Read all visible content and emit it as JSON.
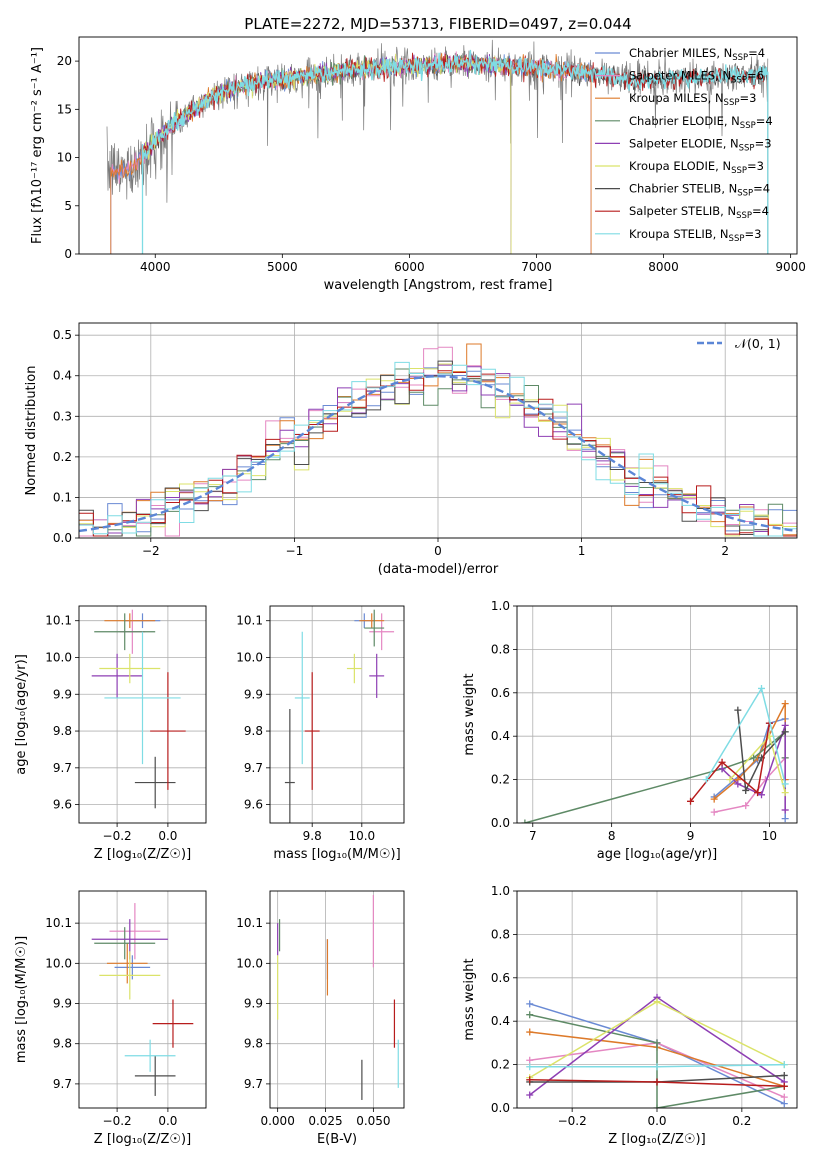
{
  "figure_title": "PLATE=2272, MJD=53713, FIBERID=0497, z=0.044",
  "series_names": [
    "Chabrier MILES",
    "Salpeter MILES",
    "Kroupa MILES",
    "Chabrier ELODIE",
    "Salpeter ELODIE",
    "Kroupa ELODIE",
    "Chabrier STELIB",
    "Salpeter STELIB",
    "Kroupa STELIB"
  ],
  "colors": [
    "#6a8ad4",
    "#e487c2",
    "#dd7a2a",
    "#5e8a66",
    "#8e3fb4",
    "#dbe36a",
    "#4d4d4d",
    "#b71c1c",
    "#7fdce4"
  ],
  "chart_data": [
    {
      "type": "line",
      "title": "PLATE=2272, MJD=53713, FIBERID=0497, z=0.044",
      "xlabel": "wavelength [Angstrom, rest frame]",
      "ylabel": "Flux [fλ10⁻¹⁷ erg cm⁻² s⁻¹ A⁻¹]",
      "xlim": [
        3400,
        9050
      ],
      "ylim": [
        0,
        22.5
      ],
      "xticks": [
        4000,
        5000,
        6000,
        7000,
        8000,
        9000
      ],
      "yticks": [
        0,
        5,
        10,
        15,
        20
      ],
      "grid": false,
      "legend_placement": "right",
      "legend": [
        {
          "name": "Chabrier MILES",
          "nssp": "4"
        },
        {
          "name": "Salpeter MILES",
          "nssp": "6"
        },
        {
          "name": "Kroupa MILES",
          "nssp": "3"
        },
        {
          "name": "Chabrier ELODIE",
          "nssp": "4"
        },
        {
          "name": "Salpeter ELODIE",
          "nssp": "3"
        },
        {
          "name": "Kroupa ELODIE",
          "nssp": "3"
        },
        {
          "name": "Chabrier STELIB",
          "nssp": "4"
        },
        {
          "name": "Salpeter STELIB",
          "nssp": "4"
        },
        {
          "name": "Kroupa STELIB",
          "nssp": "3"
        }
      ],
      "continuum": [
        [
          3650,
          8.5
        ],
        [
          3800,
          8.8
        ],
        [
          3950,
          11.0
        ],
        [
          4100,
          13.0
        ],
        [
          4300,
          15.0
        ],
        [
          4500,
          16.8
        ],
        [
          4800,
          17.8
        ],
        [
          5200,
          18.5
        ],
        [
          5600,
          19.2
        ],
        [
          6000,
          19.5
        ],
        [
          6500,
          19.8
        ],
        [
          7000,
          19.3
        ],
        [
          7400,
          18.8
        ],
        [
          7800,
          18.0
        ],
        [
          8300,
          18.3
        ],
        [
          8800,
          18.6
        ]
      ],
      "data_range": [
        3620,
        8820
      ],
      "model_ranges": {
        "MILES": [
          3650,
          7430
        ],
        "ELODIE": [
          3900,
          6800
        ],
        "STELIB": [
          3900,
          8820
        ]
      }
    },
    {
      "type": "bar",
      "subtype": "step-histogram",
      "xlabel": "(data-model)/error",
      "ylabel": "Normed distribution",
      "xlim": [
        -2.5,
        2.5
      ],
      "ylim": [
        0,
        0.53
      ],
      "xticks": [
        -2,
        -1,
        0,
        1,
        2
      ],
      "xtick_labels": [
        "−2",
        "−1",
        "0",
        "1",
        "2"
      ],
      "yticks": [
        0.0,
        0.1,
        0.2,
        0.3,
        0.4,
        0.5
      ],
      "grid": true,
      "legend_placement": "top-right",
      "reference_label": "𝒩(0, 1)",
      "bin_width": 0.1
    },
    {
      "type": "scatter",
      "subtype": "errorbar",
      "xlabel": "Z [log₁₀(Z/Z☉)]",
      "ylabel": "age  [log₁₀(age/yr)]",
      "xlim": [
        -0.35,
        0.15
      ],
      "ylim": [
        9.55,
        10.14
      ],
      "xticks": [
        -0.2,
        0.0
      ],
      "xtick_labels": [
        "−0.2",
        "0.0"
      ],
      "yticks": [
        9.6,
        9.7,
        9.8,
        9.9,
        10.0,
        10.1
      ],
      "grid": true,
      "points": [
        {
          "x": -0.1,
          "xerr": 0.07,
          "y": 10.1,
          "yerr": 0.02
        },
        {
          "x": -0.14,
          "xerr": 0.05,
          "y": 10.07,
          "yerr": 0.06
        },
        {
          "x": -0.15,
          "xerr": 0.1,
          "y": 10.1,
          "yerr": 0.02
        },
        {
          "x": -0.17,
          "xerr": 0.12,
          "y": 10.07,
          "yerr": 0.05
        },
        {
          "x": -0.2,
          "xerr": 0.1,
          "y": 9.95,
          "yerr": 0.06
        },
        {
          "x": -0.15,
          "xerr": 0.12,
          "y": 9.97,
          "yerr": 0.04
        },
        {
          "x": -0.05,
          "xerr": 0.08,
          "y": 9.66,
          "yerr": 0.07
        },
        {
          "x": 0.0,
          "xerr": 0.07,
          "y": 9.8,
          "yerr": 0.16
        },
        {
          "x": -0.1,
          "xerr": 0.15,
          "y": 9.89,
          "yerr": 0.18
        }
      ]
    },
    {
      "type": "scatter",
      "subtype": "errorbar",
      "xlabel": "mass [log₁₀(M/M☉)]",
      "ylabel": "",
      "xlim": [
        9.63,
        10.17
      ],
      "ylim": [
        9.55,
        10.14
      ],
      "xticks": [
        9.8,
        10.0
      ],
      "yticks": [
        9.6,
        9.7,
        9.8,
        9.9,
        10.0,
        10.1
      ],
      "grid": true,
      "points": [
        {
          "x": 10.01,
          "xerr": 0.04,
          "y": 10.1,
          "yerr": 0.02
        },
        {
          "x": 10.08,
          "xerr": 0.05,
          "y": 10.07,
          "yerr": 0.05
        },
        {
          "x": 10.04,
          "xerr": 0.05,
          "y": 10.1,
          "yerr": 0.02
        },
        {
          "x": 10.05,
          "xerr": 0.04,
          "y": 10.08,
          "yerr": 0.05
        },
        {
          "x": 10.06,
          "xerr": 0.03,
          "y": 9.95,
          "yerr": 0.06
        },
        {
          "x": 9.97,
          "xerr": 0.03,
          "y": 9.97,
          "yerr": 0.04
        },
        {
          "x": 9.71,
          "xerr": 0.02,
          "y": 9.66,
          "yerr": 0.2
        },
        {
          "x": 9.8,
          "xerr": 0.03,
          "y": 9.8,
          "yerr": 0.16
        },
        {
          "x": 9.76,
          "xerr": 0.03,
          "y": 9.89,
          "yerr": 0.18
        }
      ]
    },
    {
      "type": "line",
      "xlabel": "age  [log₁₀(age/yr)]",
      "ylabel": "mass weight",
      "xlim": [
        6.8,
        10.35
      ],
      "ylim": [
        0,
        1.0
      ],
      "xticks": [
        7,
        8,
        9,
        10
      ],
      "yticks": [
        0.0,
        0.2,
        0.4,
        0.6,
        0.8,
        1.0
      ],
      "grid": true,
      "series": [
        {
          "points": [
            [
              9.3,
              0.12
            ],
            [
              9.85,
              0.29
            ],
            [
              10.0,
              0.46
            ],
            [
              10.2,
              0.48
            ],
            [
              10.2,
              0.02
            ]
          ]
        },
        {
          "points": [
            [
              9.3,
              0.05
            ],
            [
              9.7,
              0.08
            ],
            [
              9.95,
              0.2
            ],
            [
              10.2,
              0.3
            ],
            [
              10.2,
              0.06
            ]
          ]
        },
        {
          "points": [
            [
              9.3,
              0.11
            ],
            [
              9.6,
              0.2
            ],
            [
              9.85,
              0.3
            ],
            [
              10.2,
              0.55
            ],
            [
              10.2,
              0.2
            ]
          ]
        },
        {
          "points": [
            [
              6.9,
              0.0
            ],
            [
              9.4,
              0.25
            ],
            [
              9.8,
              0.3
            ],
            [
              10.2,
              0.42
            ],
            [
              10.2,
              0.3
            ]
          ]
        },
        {
          "points": [
            [
              9.4,
              0.25
            ],
            [
              9.6,
              0.18
            ],
            [
              9.9,
              0.13
            ],
            [
              10.2,
              0.45
            ],
            [
              10.2,
              0.06
            ]
          ]
        },
        {
          "points": [
            [
              9.5,
              0.2
            ],
            [
              10.0,
              0.4
            ],
            [
              10.2,
              0.14
            ]
          ]
        },
        {
          "points": [
            [
              9.6,
              0.52
            ],
            [
              9.7,
              0.15
            ],
            [
              9.9,
              0.3
            ],
            [
              10.2,
              0.42
            ]
          ]
        },
        {
          "points": [
            [
              9.0,
              0.1
            ],
            [
              9.4,
              0.28
            ],
            [
              9.85,
              0.14
            ],
            [
              10.0,
              0.46
            ]
          ]
        },
        {
          "points": [
            [
              9.2,
              0.2
            ],
            [
              9.9,
              0.62
            ],
            [
              10.2,
              0.18
            ]
          ]
        }
      ]
    },
    {
      "type": "scatter",
      "subtype": "errorbar",
      "xlabel": "Z [log₁₀(Z/Z☉)]",
      "ylabel": "mass [log₁₀(M/M☉)]",
      "xlim": [
        -0.35,
        0.15
      ],
      "ylim": [
        9.64,
        10.18
      ],
      "xticks": [
        -0.2,
        0.0
      ],
      "xtick_labels": [
        "−0.2",
        "0.0"
      ],
      "yticks": [
        9.7,
        9.8,
        9.9,
        10.0,
        10.1
      ],
      "grid": true,
      "points": [
        {
          "x": -0.14,
          "xerr": 0.07,
          "y": 9.99,
          "yerr": 0.03
        },
        {
          "x": -0.13,
          "xerr": 0.1,
          "y": 10.08,
          "yerr": 0.07
        },
        {
          "x": -0.16,
          "xerr": 0.08,
          "y": 10.0,
          "yerr": 0.05
        },
        {
          "x": -0.17,
          "xerr": 0.12,
          "y": 10.05,
          "yerr": 0.04
        },
        {
          "x": -0.15,
          "xerr": 0.15,
          "y": 10.06,
          "yerr": 0.05
        },
        {
          "x": -0.15,
          "xerr": 0.12,
          "y": 9.97,
          "yerr": 0.06
        },
        {
          "x": -0.05,
          "xerr": 0.08,
          "y": 9.72,
          "yerr": 0.05
        },
        {
          "x": 0.02,
          "xerr": 0.08,
          "y": 9.85,
          "yerr": 0.06
        },
        {
          "x": -0.07,
          "xerr": 0.1,
          "y": 9.77,
          "yerr": 0.04
        }
      ]
    },
    {
      "type": "scatter",
      "subtype": "errorbar",
      "xlabel": "E(B-V)",
      "ylabel": "",
      "xlim": [
        -0.004,
        0.066
      ],
      "ylim": [
        9.64,
        10.18
      ],
      "xticks": [
        0.0,
        0.025,
        0.05
      ],
      "xtick_labels": [
        "0.000",
        "0.025",
        "0.050"
      ],
      "yticks": [
        9.7,
        9.8,
        9.9,
        10.0,
        10.1
      ],
      "grid": true,
      "points": [
        {
          "x": 0.026,
          "y": 10.01,
          "yerr": 0.05
        },
        {
          "x": 0.05,
          "y": 10.08,
          "yerr": 0.09
        },
        {
          "x": 0.026,
          "y": 9.99,
          "yerr": 0.07
        },
        {
          "x": 0.001,
          "y": 10.07,
          "yerr": 0.04
        },
        {
          "x": 0.0,
          "y": 10.06,
          "yerr": 0.04
        },
        {
          "x": 0.0,
          "y": 9.94,
          "yerr": 0.08
        },
        {
          "x": 0.044,
          "y": 9.71,
          "yerr": 0.05
        },
        {
          "x": 0.061,
          "y": 9.85,
          "yerr": 0.06
        },
        {
          "x": 0.063,
          "y": 9.75,
          "yerr": 0.06
        }
      ]
    },
    {
      "type": "line",
      "xlabel": "Z [log₁₀(Z/Z☉)]",
      "ylabel": "mass weight",
      "xlim": [
        -0.33,
        0.33
      ],
      "ylim": [
        0,
        1.0
      ],
      "xticks": [
        -0.2,
        0.0,
        0.2
      ],
      "xtick_labels": [
        "−0.2",
        "0.0",
        "0.2"
      ],
      "yticks": [
        0.0,
        0.2,
        0.4,
        0.6,
        0.8,
        1.0
      ],
      "grid": true,
      "series": [
        {
          "points": [
            [
              -0.3,
              0.48
            ],
            [
              0.0,
              0.3
            ],
            [
              0.3,
              0.02
            ]
          ]
        },
        {
          "points": [
            [
              -0.3,
              0.22
            ],
            [
              0.0,
              0.3
            ],
            [
              0.3,
              0.05
            ]
          ]
        },
        {
          "points": [
            [
              -0.3,
              0.35
            ],
            [
              0.0,
              0.28
            ],
            [
              0.3,
              0.1
            ]
          ]
        },
        {
          "points": [
            [
              -0.3,
              0.43
            ],
            [
              0.0,
              0.3
            ],
            [
              0.0,
              0.0
            ],
            [
              0.3,
              0.1
            ]
          ]
        },
        {
          "points": [
            [
              -0.3,
              0.06
            ],
            [
              0.0,
              0.51
            ],
            [
              0.3,
              0.12
            ]
          ]
        },
        {
          "points": [
            [
              -0.3,
              0.14
            ],
            [
              0.0,
              0.49
            ],
            [
              0.3,
              0.2
            ]
          ]
        },
        {
          "points": [
            [
              -0.3,
              0.12
            ],
            [
              0.0,
              0.12
            ],
            [
              0.3,
              0.15
            ]
          ]
        },
        {
          "points": [
            [
              -0.3,
              0.13
            ],
            [
              0.0,
              0.12
            ],
            [
              0.3,
              0.1
            ]
          ]
        },
        {
          "points": [
            [
              -0.3,
              0.19
            ],
            [
              0.0,
              0.19
            ],
            [
              0.3,
              0.2
            ]
          ]
        }
      ]
    }
  ]
}
